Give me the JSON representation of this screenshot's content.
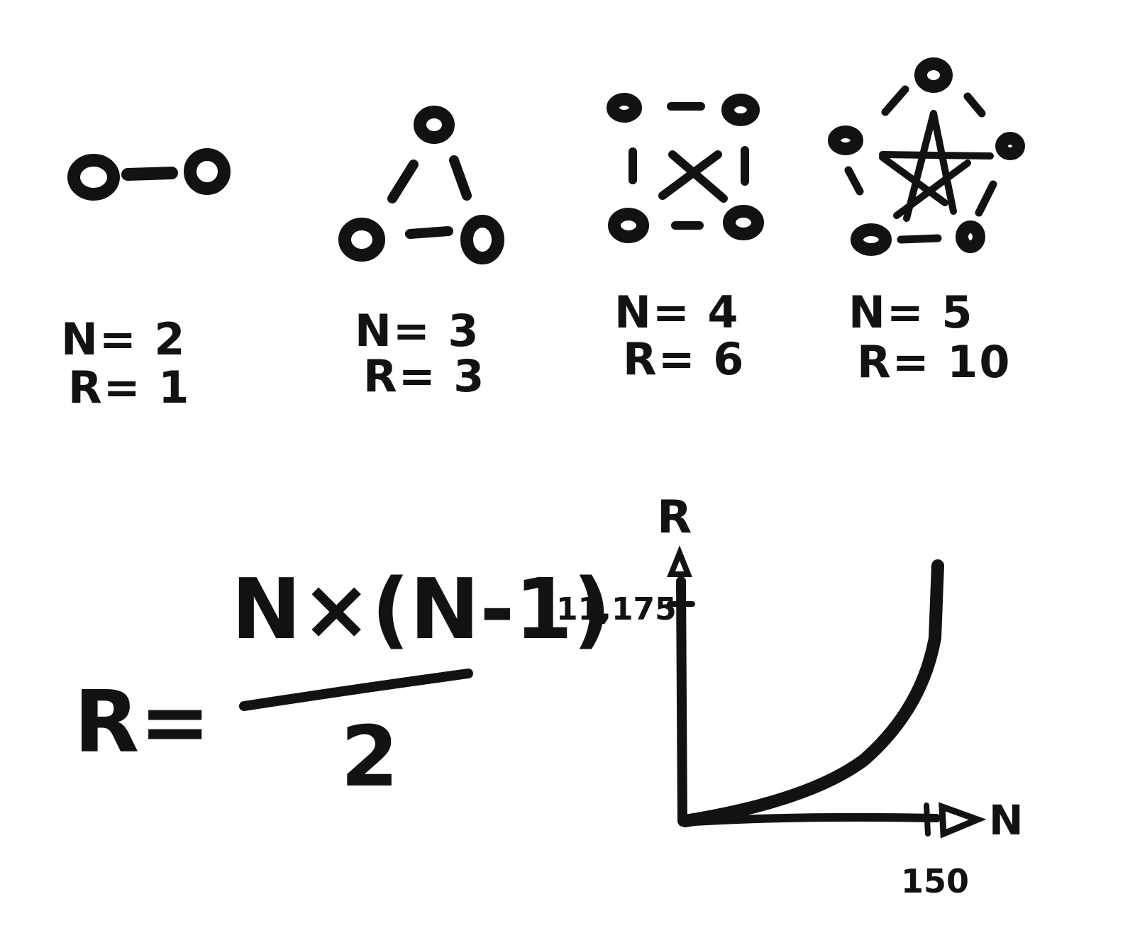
{
  "graphs": [
    {
      "n_label": "N= 2",
      "r_label": "R= 1"
    },
    {
      "n_label": "N= 3",
      "r_label": "R= 3"
    },
    {
      "n_label": "N= 4",
      "r_label": "R= 6"
    },
    {
      "n_label": "N= 5",
      "r_label": "R= 10"
    }
  ],
  "formula": {
    "lhs": "R=",
    "numerator": "N×(N-1)",
    "denominator": "2"
  },
  "plot": {
    "y_axis_label": "R",
    "x_axis_label": "N",
    "y_tick_label": "11,175",
    "x_tick_label": "150"
  },
  "colors": {
    "ink": "#121212",
    "background": "#ffffff"
  }
}
